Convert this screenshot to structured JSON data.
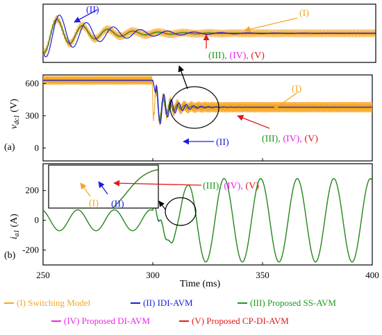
{
  "chart_data": {
    "type": "line",
    "xlabel": "Time (ms)",
    "xlim": [
      250,
      400
    ],
    "x_ticks": [
      "250",
      "300",
      "350",
      "400"
    ],
    "colors": {
      "I": "#f5a623",
      "II": "#1c1ce0",
      "III": "#1b9a1b",
      "IV": "#ee22ee",
      "V": "#e01818"
    },
    "legend": [
      {
        "key": "I",
        "label": "(I) Switching Model"
      },
      {
        "key": "II",
        "label": "(II) IDI-AVM"
      },
      {
        "key": "III",
        "label": "(III) Proposed SS-AVM"
      },
      {
        "key": "IV",
        "label": "(IV) Proposed DI-AVM"
      },
      {
        "key": "V",
        "label": "(V) Proposed CP-DI-AVM"
      }
    ],
    "panels": [
      {
        "id": "a",
        "tag": "(a)",
        "ylabel_main": "v",
        "ylabel_sub": "dc1",
        "ylabel_unit": " (V)",
        "ylim": [
          -120,
          680
        ],
        "y_ticks": [
          "0",
          "300",
          "600"
        ],
        "pre_value": 630,
        "post_value": 380,
        "switching_ripple": 40,
        "step_time": 300,
        "annotations": {
          "I": "(I)",
          "II": "(II)",
          "III_IV_V": [
            "(III), ",
            "(IV), ",
            "(V)"
          ]
        }
      },
      {
        "id": "b",
        "tag": "(b)",
        "ylabel_main": "i",
        "ylabel_sub": "a1",
        "ylabel_unit": " (A)",
        "ylim": [
          -300,
          380
        ],
        "y_ticks": [
          "-200",
          "0",
          "200"
        ],
        "pre_amplitude": 70,
        "post_amplitude": 280,
        "period_ms": 16.67,
        "annotations": {
          "I": "(I)",
          "II": "(II)",
          "III_IV_V": [
            "(III), ",
            "(IV), ",
            "(V)"
          ]
        }
      }
    ],
    "zoom_panel": {
      "annotations": {
        "I": "(I)",
        "II": "(II)",
        "III_IV_V": [
          "(III), ",
          "(IV), ",
          "(V)"
        ]
      }
    }
  }
}
